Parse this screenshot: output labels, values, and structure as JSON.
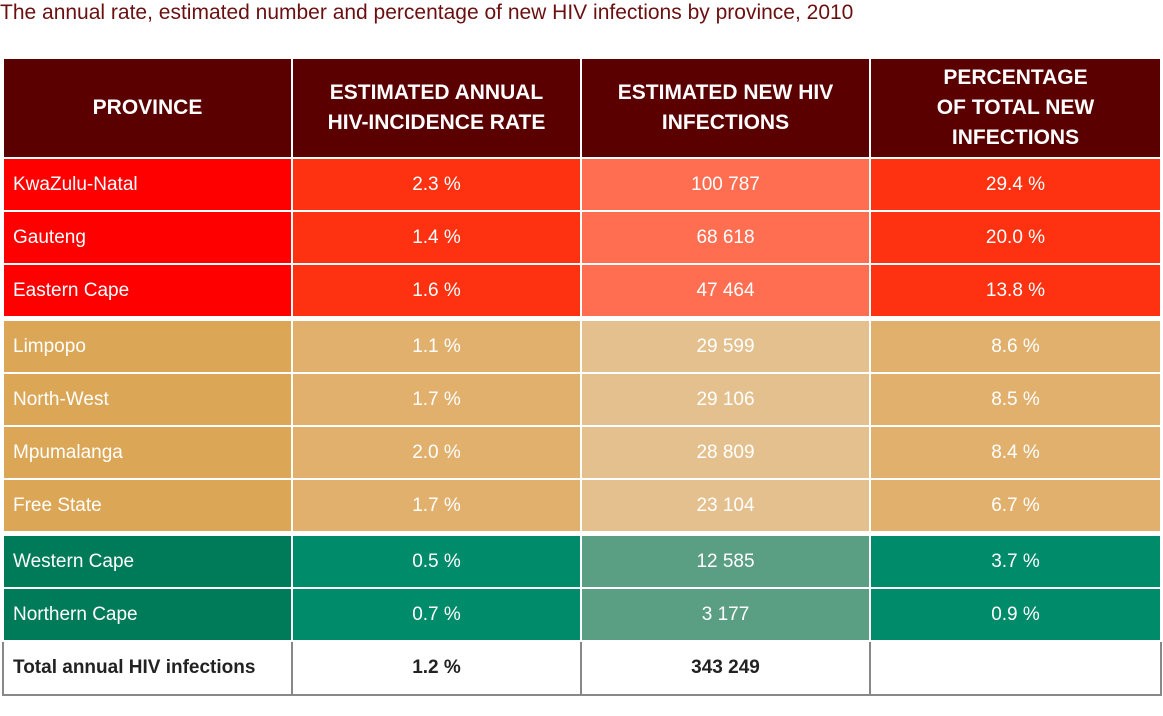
{
  "title": "The annual rate, estimated number and percentage of new HIV infections by province, 2010",
  "columns": {
    "province": "PROVINCE",
    "rate_l1": "ESTIMATED ANNUAL",
    "rate_l2": "HIV-INCIDENCE RATE",
    "new_l1": "ESTIMATED NEW HIV",
    "new_l2": "INFECTIONS",
    "pct_l1": "PERCENTAGE",
    "pct_l2": "OF TOTAL NEW",
    "pct_l3": "INFECTIONS"
  },
  "colors": {
    "header": "#5a0000",
    "high_group": "#fe0000",
    "mid_group": "#dba655",
    "low_group": "#007b59"
  },
  "chart_data": {
    "type": "table",
    "title": "The annual rate, estimated number and percentage of new HIV infections by province, 2010",
    "headers": [
      "PROVINCE",
      "ESTIMATED ANNUAL HIV-INCIDENCE RATE",
      "ESTIMATED NEW HIV INFECTIONS",
      "PERCENTAGE OF TOTAL NEW INFECTIONS"
    ],
    "rows": [
      {
        "province": "KwaZulu-Natal",
        "rate": "2.3 %",
        "new_infections": "100 787",
        "percent": "29.4 %",
        "group": "red"
      },
      {
        "province": "Gauteng",
        "rate": "1.4 %",
        "new_infections": "68 618",
        "percent": "20.0 %",
        "group": "red"
      },
      {
        "province": "Eastern Cape",
        "rate": "1.6 %",
        "new_infections": "47 464",
        "percent": "13.8 %",
        "group": "red"
      },
      {
        "province": "Limpopo",
        "rate": "1.1 %",
        "new_infections": "29 599",
        "percent": "8.6 %",
        "group": "tan"
      },
      {
        "province": "North-West",
        "rate": "1.7 %",
        "new_infections": "29 106",
        "percent": "8.5 %",
        "group": "tan"
      },
      {
        "province": "Mpumalanga",
        "rate": "2.0 %",
        "new_infections": "28 809",
        "percent": "8.4 %",
        "group": "tan"
      },
      {
        "province": "Free State",
        "rate": "1.7 %",
        "new_infections": "23 104",
        "percent": "6.7 %",
        "group": "tan"
      },
      {
        "province": "Western Cape",
        "rate": "0.5 %",
        "new_infections": "12 585",
        "percent": "3.7 %",
        "group": "green"
      },
      {
        "province": "Northern Cape",
        "rate": "0.7 %",
        "new_infections": "3 177",
        "percent": "0.9 %",
        "group": "green"
      }
    ],
    "total": {
      "label": "Total annual HIV infections",
      "rate": "1.2 %",
      "new_infections": "343 249",
      "percent": ""
    }
  }
}
